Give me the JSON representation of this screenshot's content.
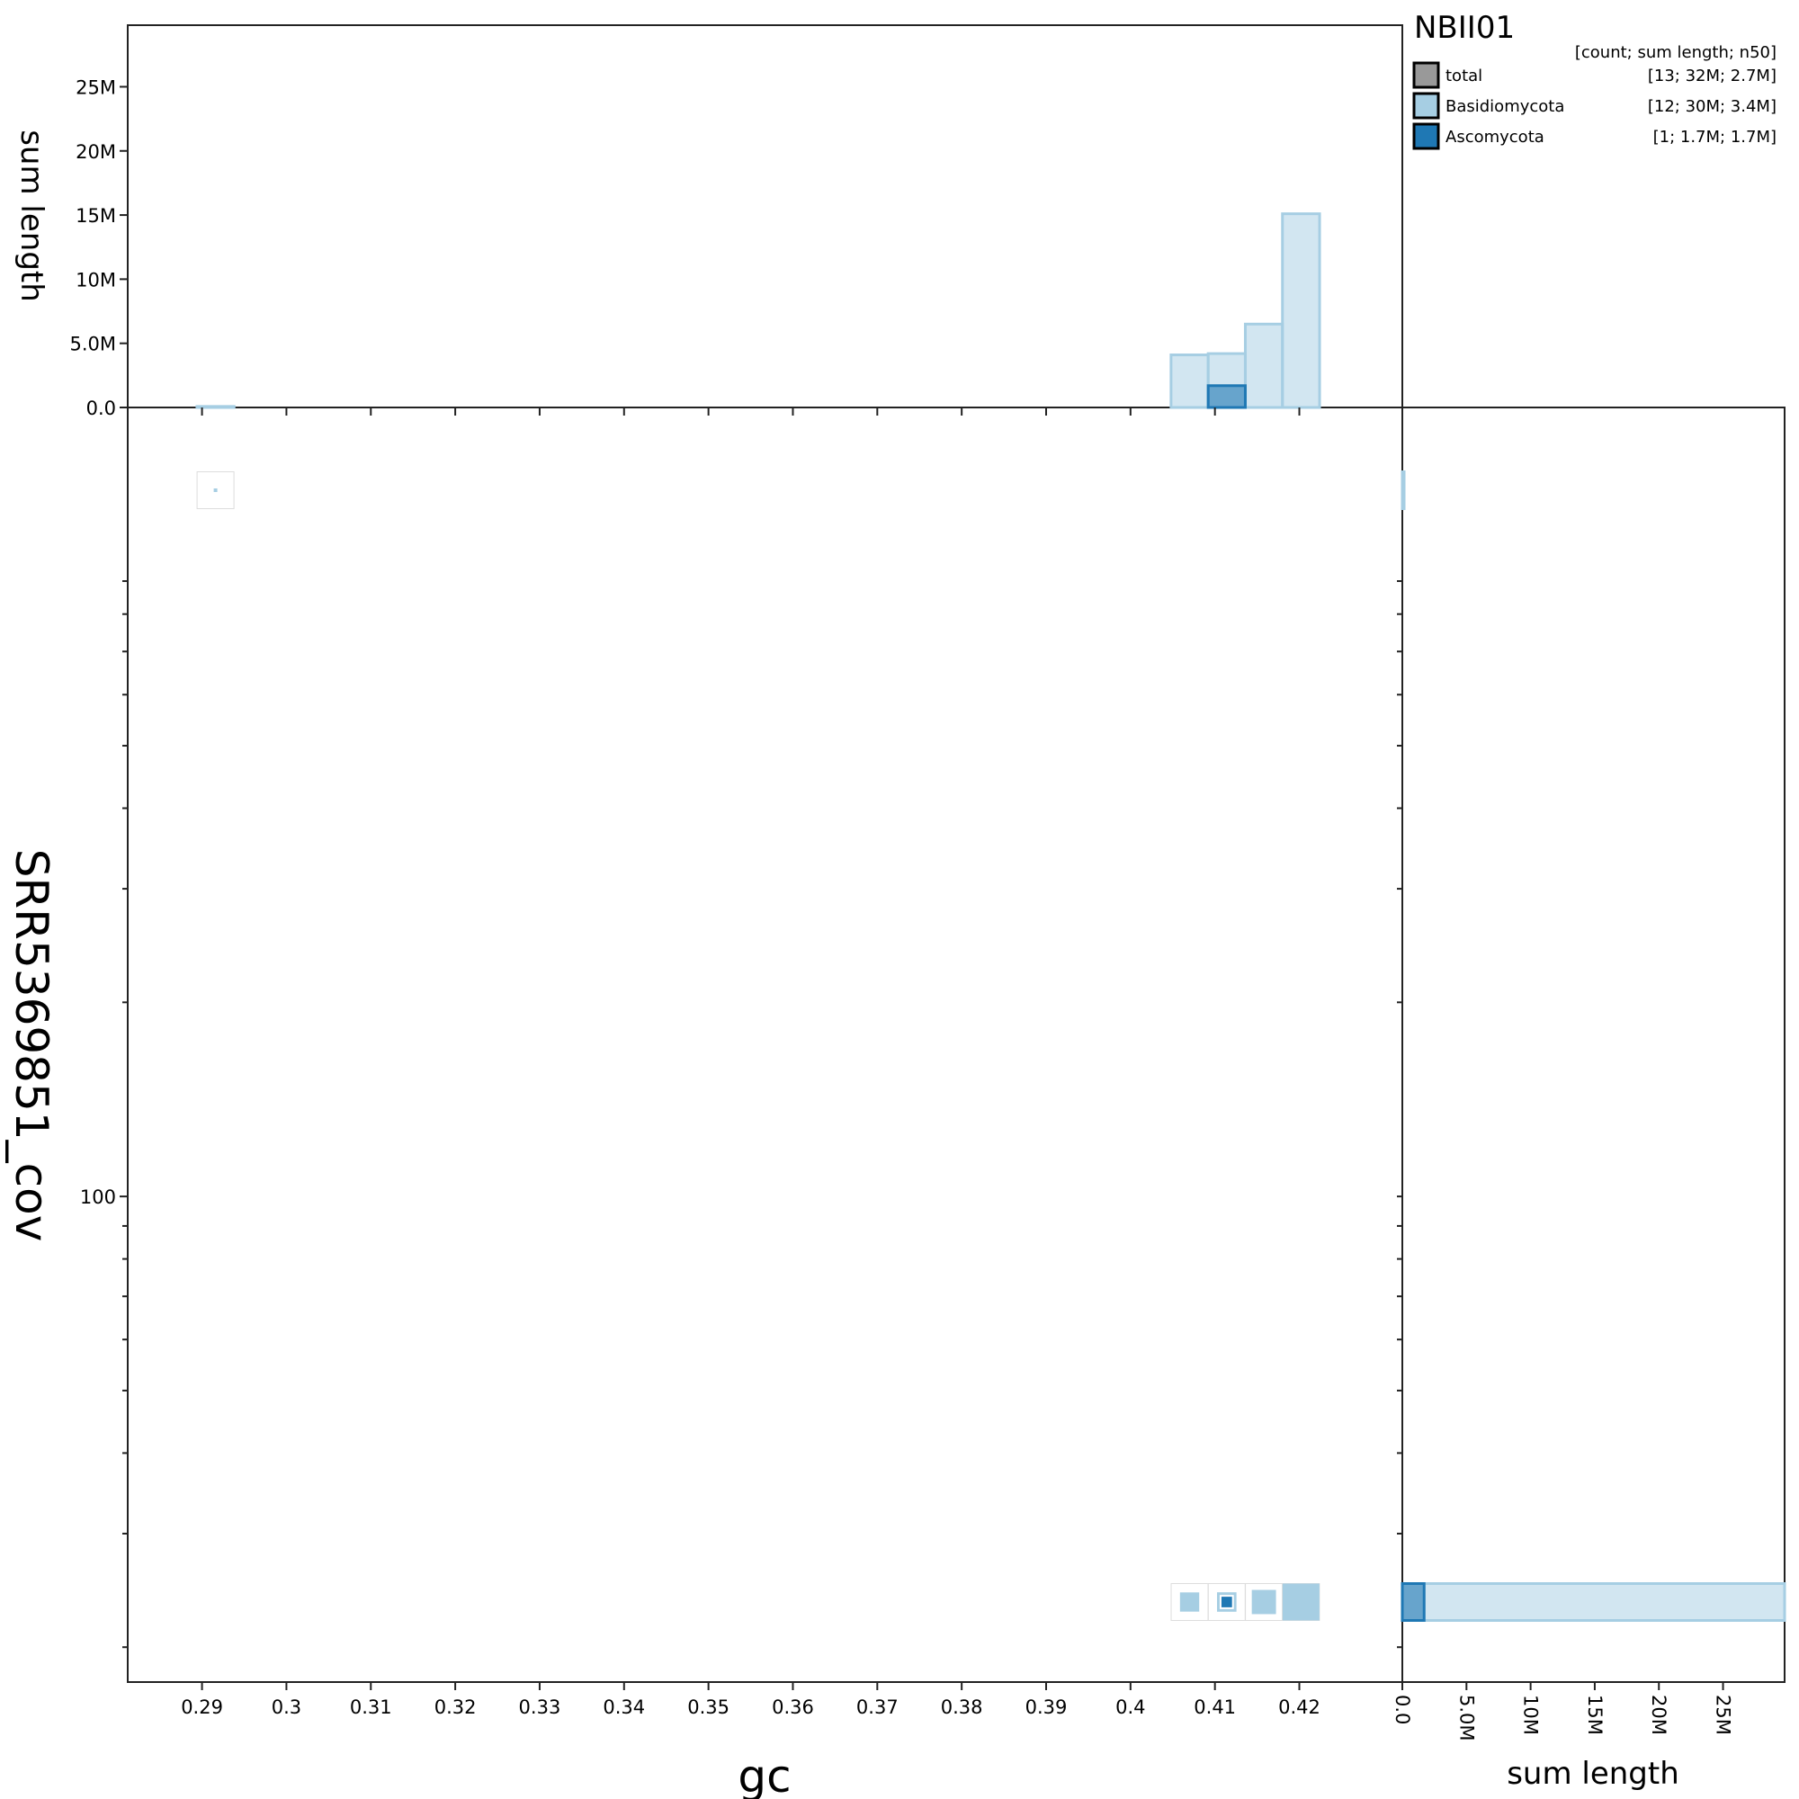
{
  "chart_data": [
    {
      "type": "scatter",
      "name": "main",
      "xlabel": "gc",
      "ylabel": "SRR5369851_cov",
      "x_ticks": [
        "0.29",
        "0.3",
        "0.31",
        "0.32",
        "0.33",
        "0.34",
        "0.35",
        "0.36",
        "0.37",
        "0.38",
        "0.39",
        "0.4",
        "0.41",
        "0.42"
      ],
      "y_ticks": [
        "100"
      ],
      "xlim": [
        0.2812,
        0.4322
      ],
      "y_scale": "log",
      "bin_width": 0.0044,
      "series": [
        {
          "name": "Basidiomycota",
          "color": "#a6cee3",
          "points": [
            {
              "gc": 0.2916,
              "cov": 1245,
              "sum_length": 0.08
            },
            {
              "gc": 0.407,
              "cov": 23.5,
              "sum_length": 4.1
            },
            {
              "gc": 0.4114,
              "cov": 23.5,
              "sum_length": 4.2
            },
            {
              "gc": 0.4158,
              "cov": 23.5,
              "sum_length": 6.5
            },
            {
              "gc": 0.4202,
              "cov": 23.5,
              "sum_length": 15.1
            }
          ]
        },
        {
          "name": "Ascomycota",
          "color": "#1f78b4",
          "points": [
            {
              "gc": 0.4114,
              "cov": 23.5,
              "sum_length": 1.7
            }
          ]
        }
      ]
    },
    {
      "type": "bar",
      "name": "top-histogram",
      "ylabel": "sum length",
      "y_ticks": [
        "0.0",
        "5.0M",
        "10M",
        "15M",
        "20M",
        "25M"
      ],
      "ylim": [
        0,
        29.8
      ],
      "units": "M",
      "series": [
        {
          "name": "Basidiomycota",
          "bins": [
            {
              "x0": 0.2894,
              "x1": 0.2938,
              "value": 0.08
            },
            {
              "x0": 0.4048,
              "x1": 0.4092,
              "value": 4.1
            },
            {
              "x0": 0.4092,
              "x1": 0.4136,
              "value": 4.2
            },
            {
              "x0": 0.4136,
              "x1": 0.418,
              "value": 6.5
            },
            {
              "x0": 0.418,
              "x1": 0.4224,
              "value": 15.1
            }
          ]
        },
        {
          "name": "Ascomycota",
          "bins": [
            {
              "x0": 0.4092,
              "x1": 0.4136,
              "value": 1.7
            }
          ]
        }
      ]
    },
    {
      "type": "bar",
      "name": "right-histogram",
      "xlabel": "sum length",
      "x_ticks": [
        "0.0",
        "5.0M",
        "10M",
        "15M",
        "20M",
        "25M"
      ],
      "xlim": [
        0,
        29.8
      ],
      "units": "M",
      "series": [
        {
          "name": "Basidiomycota",
          "bins": [
            {
              "cov": 1245,
              "value": 0.08
            },
            {
              "cov": 23.5,
              "value": 29.9
            }
          ]
        },
        {
          "name": "Ascomycota",
          "bins": [
            {
              "cov": 23.5,
              "value": 1.7
            }
          ]
        }
      ]
    }
  ],
  "legend": {
    "title": "NBII01",
    "header": "[count; sum length; n50]",
    "placement": "top-right",
    "entries": [
      {
        "label": "total",
        "stats": "[13; 32M; 2.7M]",
        "color": "#999999"
      },
      {
        "label": "Basidiomycota",
        "stats": "[12; 30M; 3.4M]",
        "color": "#a6cee3"
      },
      {
        "label": "Ascomycota",
        "stats": "[1; 1.7M; 1.7M]",
        "color": "#1f78b4"
      }
    ]
  }
}
